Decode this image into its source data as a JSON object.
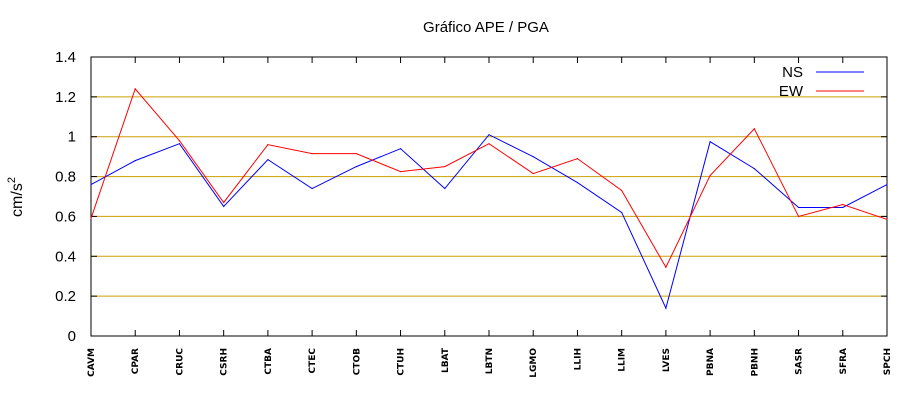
{
  "chart_data": {
    "type": "line",
    "title": "Gráfico  APE / PGA",
    "xlabel": "",
    "ylabel": "cm/s",
    "ylabel_superscript": "2",
    "ylim": [
      0,
      1.4
    ],
    "yticks": [
      "0",
      "0.2",
      "0.4",
      "0.6",
      "0.8",
      "1",
      "1.2",
      "1.4"
    ],
    "grid": "horizontal",
    "legend_position": "top-right",
    "categories": [
      "CAVM",
      "CPAR",
      "CRUC",
      "CSRH",
      "CTBA",
      "CTEC",
      "CTOB",
      "CTUH",
      "LBAT",
      "LBTN",
      "LGMO",
      "LLIH",
      "LLIM",
      "LVES",
      "PBNA",
      "PBNH",
      "SASR",
      "SFRA",
      "SPCH"
    ],
    "series": [
      {
        "name": "NS",
        "color": "#0000ff",
        "values": [
          0.76,
          0.88,
          0.965,
          0.65,
          0.885,
          0.74,
          0.85,
          0.94,
          0.74,
          1.01,
          0.9,
          0.77,
          0.62,
          0.14,
          0.975,
          0.84,
          0.645,
          0.645,
          0.76
        ]
      },
      {
        "name": "EW",
        "color": "#ff0000",
        "values": [
          0.59,
          1.24,
          0.98,
          0.67,
          0.96,
          0.915,
          0.915,
          0.825,
          0.85,
          0.965,
          0.815,
          0.89,
          0.73,
          0.345,
          0.805,
          1.04,
          0.6,
          0.66,
          0.585
        ]
      }
    ]
  }
}
